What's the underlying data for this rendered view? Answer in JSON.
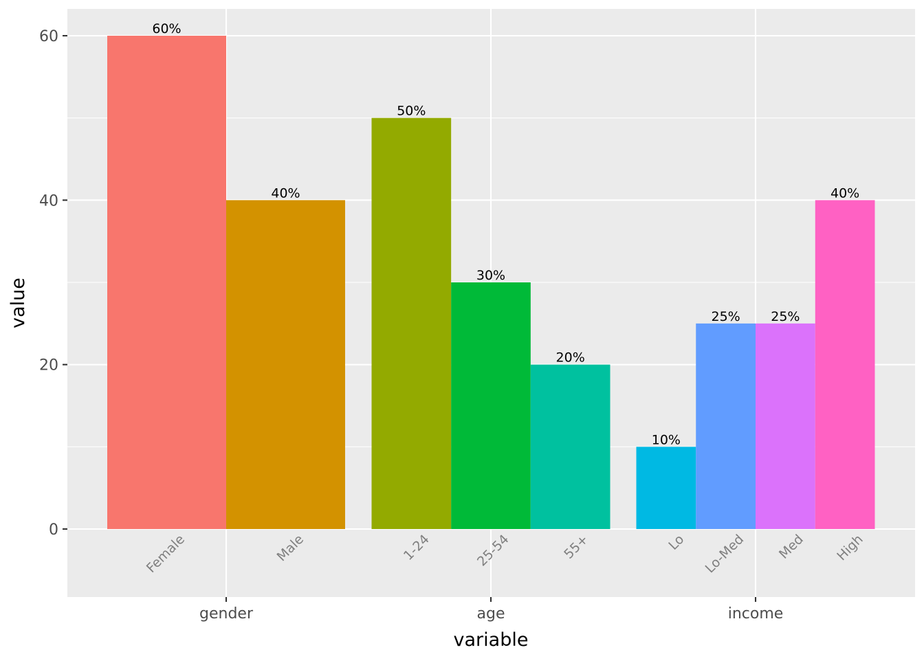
{
  "chart_data": {
    "type": "bar",
    "xlabel": "variable",
    "ylabel": "value",
    "ylim": [
      -8.3,
      63.3
    ],
    "y_ticks": [
      0,
      20,
      40,
      60
    ],
    "y_tick_labels": [
      "0",
      "20",
      "40",
      "60"
    ],
    "grid": true,
    "groups": [
      {
        "name": "gender",
        "bars": [
          {
            "category": "Female",
            "value": 60,
            "label": "60%",
            "color": "#F8766D"
          },
          {
            "category": "Male",
            "value": 40,
            "label": "40%",
            "color": "#D39200"
          }
        ]
      },
      {
        "name": "age",
        "bars": [
          {
            "category": "1-24",
            "value": 50,
            "label": "50%",
            "color": "#93AA00"
          },
          {
            "category": "25-54",
            "value": 30,
            "label": "30%",
            "color": "#00BA38"
          },
          {
            "category": "55+",
            "value": 20,
            "label": "20%",
            "color": "#00C19F"
          }
        ]
      },
      {
        "name": "income",
        "bars": [
          {
            "category": "Lo",
            "value": 10,
            "label": "10%",
            "color": "#00B9E3"
          },
          {
            "category": "Lo-Med",
            "value": 25,
            "label": "25%",
            "color": "#619CFF"
          },
          {
            "category": "Med",
            "value": 25,
            "label": "25%",
            "color": "#DB72FB"
          },
          {
            "category": "High",
            "value": 40,
            "label": "40%",
            "color": "#FF61C3"
          }
        ]
      }
    ]
  }
}
